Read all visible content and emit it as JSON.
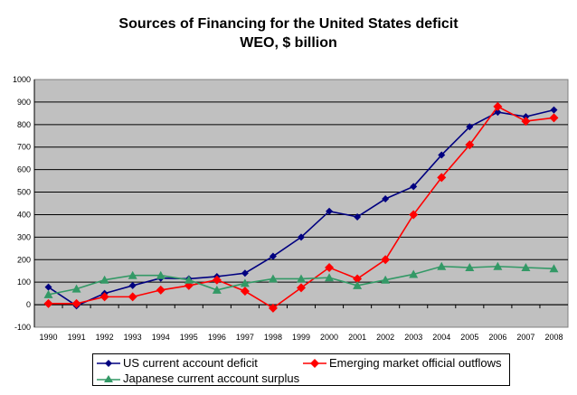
{
  "chart_data": {
    "type": "line",
    "title": "Sources of Financing for the United States deficit",
    "subtitle": "WEO, $ billion",
    "xlabel": "",
    "ylabel": "",
    "categories": [
      "1990",
      "1991",
      "1992",
      "1993",
      "1994",
      "1995",
      "1996",
      "1997",
      "1998",
      "1999",
      "2000",
      "2001",
      "2002",
      "2003",
      "2004",
      "2005",
      "2006",
      "2007",
      "2008"
    ],
    "ylim": [
      -100,
      1000
    ],
    "yticks": [
      -100,
      0,
      100,
      200,
      300,
      400,
      500,
      600,
      700,
      800,
      900,
      1000
    ],
    "grid": true,
    "plot_background": "#c0c0c0",
    "legend_placement": "bottom",
    "series": [
      {
        "name": "US current account deficit",
        "color": "#000080",
        "marker": "diamond",
        "values": [
          78,
          -5,
          50,
          85,
          118,
          115,
          125,
          140,
          215,
          300,
          415,
          390,
          470,
          525,
          665,
          790,
          855,
          835,
          865
        ]
      },
      {
        "name": "Emerging market official outflows",
        "color": "#ff0000",
        "marker": "diamond",
        "values": [
          5,
          5,
          35,
          35,
          65,
          85,
          110,
          60,
          -15,
          75,
          165,
          115,
          200,
          400,
          565,
          710,
          880,
          815,
          830
        ]
      },
      {
        "name": "Japanese current account surplus",
        "color": "#339966",
        "marker": "triangle",
        "values": [
          45,
          70,
          110,
          130,
          130,
          110,
          65,
          95,
          115,
          115,
          120,
          85,
          110,
          135,
          170,
          165,
          170,
          165,
          160
        ]
      }
    ]
  }
}
